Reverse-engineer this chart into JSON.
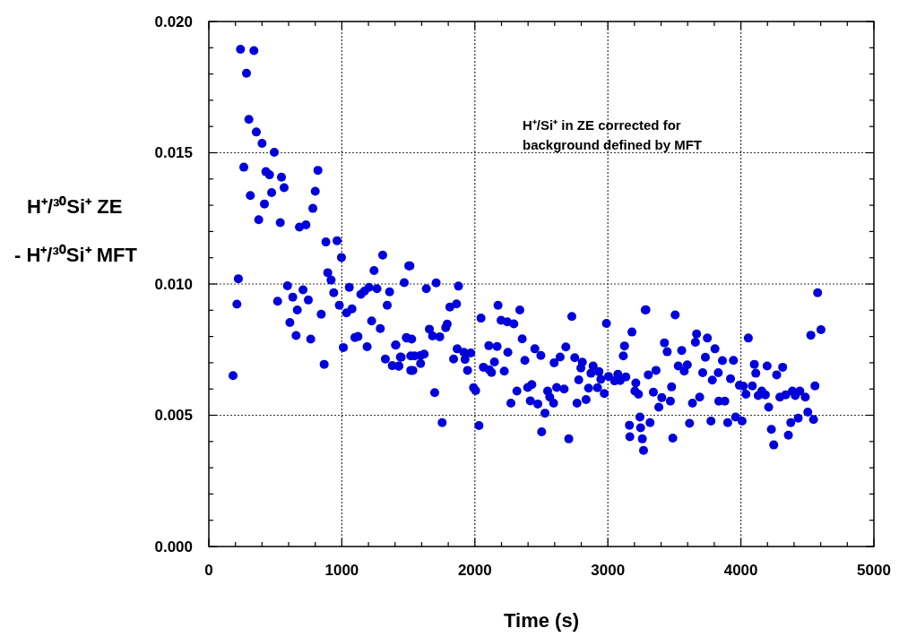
{
  "chart_data": {
    "type": "scatter",
    "xlabel": "Time (s)",
    "ylabel": "H⁺/³⁰Si⁺ ZE - H⁺/³⁰Si⁺ MFT",
    "annotations": [
      "H⁺/Si⁺ in ZE corrected for",
      "background defined by MFT"
    ],
    "xlim": [
      0,
      5000
    ],
    "ylim": [
      0,
      0.02
    ],
    "xticks": [
      0,
      {
        "value": 200,
        "label": null
      },
      {
        "value": 400,
        "label": null
      },
      {
        "value": 600,
        "label": null
      },
      {
        "value": 800,
        "label": null
      },
      1000,
      {
        "value": 1200,
        "label": null
      },
      {
        "value": 1400,
        "label": null
      },
      {
        "value": 1600,
        "label": null
      },
      {
        "value": 1800,
        "label": null
      },
      2000,
      {
        "value": 2200,
        "label": null
      },
      {
        "value": 2400,
        "label": null
      },
      {
        "value": 2600,
        "label": null
      },
      {
        "value": 2800,
        "label": null
      },
      3000,
      {
        "value": 3200,
        "label": null
      },
      {
        "value": 3400,
        "label": null
      },
      {
        "value": 3600,
        "label": null
      },
      {
        "value": 3800,
        "label": null
      },
      4000,
      {
        "value": 4200,
        "label": null
      },
      {
        "value": 4400,
        "label": null
      },
      {
        "value": 4600,
        "label": null
      },
      {
        "value": 4800,
        "label": null
      },
      5000
    ],
    "yticks": [
      {
        "value": 0,
        "label": "0.000"
      },
      {
        "value": 0.001,
        "label": null
      },
      {
        "value": 0.002,
        "label": null
      },
      {
        "value": 0.003,
        "label": null
      },
      {
        "value": 0.004,
        "label": null
      },
      {
        "value": 0.005,
        "label": "0.005"
      },
      {
        "value": 0.006,
        "label": null
      },
      {
        "value": 0.007,
        "label": null
      },
      {
        "value": 0.008,
        "label": null
      },
      {
        "value": 0.009,
        "label": null
      },
      {
        "value": 0.01,
        "label": "0.010"
      },
      {
        "value": 0.011,
        "label": null
      },
      {
        "value": 0.012,
        "label": null
      },
      {
        "value": 0.013,
        "label": null
      },
      {
        "value": 0.014,
        "label": null
      },
      {
        "value": 0.015,
        "label": "0.015"
      },
      {
        "value": 0.016,
        "label": null
      },
      {
        "value": 0.017,
        "label": null
      },
      {
        "value": 0.018,
        "label": null
      },
      {
        "value": 0.019,
        "label": null
      },
      {
        "value": 0.02,
        "label": "0.020"
      }
    ],
    "grid": true,
    "marker": "circle",
    "series": [
      {
        "color": "#0000dd",
        "x": [
          182,
          211,
          222,
          238,
          283,
          301,
          339,
          357,
          400,
          492,
          263,
          429,
          456,
          546,
          566,
          312,
          472,
          418,
          820,
          800,
          782,
          375,
          537,
          681,
          730,
          880,
          964,
          997,
          1307,
          894,
          919,
          939,
          591,
          708,
          631,
          748,
          517,
          665,
          845,
          981,
          1056,
          1035,
          1076,
          1143,
          1170,
          1204,
          1264,
          1242,
          1341,
          1359,
          1469,
          1503,
          609,
          656,
          766,
          1224,
          1289,
          1098,
          1121,
          1011,
          1190,
          867,
          1404,
          1327,
          1379,
          1428,
          1446,
          1487,
          1518,
          1518,
          1512,
          1635,
          1709,
          1877,
          1812,
          1862,
          2046,
          2174,
          2338,
          2197,
          2244,
          2293,
          2729,
          2989,
          3281,
          3181,
          3125,
          3116,
          1781,
          1792,
          1658,
          1682,
          1736,
          1485,
          1525,
          1406,
          1440,
          1428,
          1547,
          1592,
          1619,
          1592,
          1534,
          1840,
          1867,
          1917,
          1969,
          1926,
          1945,
          1698,
          1754,
          1990,
          2006,
          2031,
          2105,
          2167,
          2248,
          2064,
          2109,
          2125,
          2147,
          2221,
          2356,
          2376,
          2451,
          2496,
          2684,
          2751,
          2596,
          2641,
          2808,
          2797,
          2889,
          2933,
          2873,
          2781,
          3075,
          2316,
          2397,
          2428,
          2547,
          2615,
          2671,
          2271,
          2417,
          2473,
          2563,
          2592,
          2527,
          2502,
          2706,
          2768,
          2836,
          2855,
          2922,
          2973,
          2947,
          3005,
          3050,
          3092,
          3135,
          3210,
          3162,
          3241,
          3259,
          3286,
          3506,
          3425,
          3446,
          3555,
          3667,
          3658,
          3748,
          3805,
          3733,
          3861,
          3944,
          4056,
          3529,
          3574,
          3597,
          3713,
          3830,
          3785,
          3922,
          3304,
          3362,
          3203,
          3230,
          3342,
          3479,
          3405,
          3470,
          3383,
          3636,
          3690,
          3834,
          3879,
          3989,
          4018,
          4038,
          4086,
          4101,
          4112,
          4197,
          4269,
          4314,
          4130,
          4157,
          4184,
          4209,
          4293,
          4337,
          4387,
          4409,
          4443,
          4484,
          4557,
          4526,
          4602,
          4577,
          4503,
          4546,
          4431,
          4375,
          4357,
          4247,
          4229,
          3960,
          4009,
          3901,
          3775,
          3614,
          3488,
          3317,
          3246,
          3165,
          3268
        ],
        "values": [
          0.00651,
          0.00923,
          0.0102,
          0.01894,
          0.01803,
          0.01627,
          0.01889,
          0.01579,
          0.01536,
          0.01502,
          0.01445,
          0.01428,
          0.01416,
          0.01407,
          0.01367,
          0.01337,
          0.01348,
          0.01305,
          0.01433,
          0.01353,
          0.01288,
          0.01245,
          0.01234,
          0.01217,
          0.01225,
          0.0116,
          0.01165,
          0.01101,
          0.0111,
          0.01043,
          0.01015,
          0.00967,
          0.00993,
          0.00978,
          0.0095,
          0.00939,
          0.00934,
          0.00901,
          0.00885,
          0.00919,
          0.00987,
          0.0089,
          0.00905,
          0.00961,
          0.00973,
          0.00987,
          0.00982,
          0.01051,
          0.00919,
          0.0097,
          0.01005,
          0.01069,
          0.00853,
          0.00804,
          0.0079,
          0.00859,
          0.0083,
          0.00796,
          0.008,
          0.00758,
          0.00761,
          0.00694,
          0.00767,
          0.00714,
          0.00689,
          0.00687,
          0.00721,
          0.00794,
          0.00671,
          0.00726,
          0.01069,
          0.00982,
          0.01004,
          0.00992,
          0.00912,
          0.00924,
          0.0087,
          0.00919,
          0.00901,
          0.00862,
          0.00856,
          0.00848,
          0.00876,
          0.0085,
          0.00901,
          0.00817,
          0.00764,
          0.00726,
          0.00834,
          0.00847,
          0.00828,
          0.00802,
          0.00799,
          0.00796,
          0.0079,
          0.00768,
          0.00722,
          0.00688,
          0.00726,
          0.00728,
          0.00733,
          0.00697,
          0.00671,
          0.00714,
          0.00753,
          0.0074,
          0.00737,
          0.00713,
          0.00671,
          0.00586,
          0.00472,
          0.00605,
          0.00594,
          0.00461,
          0.00765,
          0.00762,
          0.0074,
          0.00683,
          0.00673,
          0.00663,
          0.00703,
          0.00668,
          0.00791,
          0.00709,
          0.00753,
          0.00728,
          0.0076,
          0.00719,
          0.007,
          0.00722,
          0.00702,
          0.0068,
          0.00688,
          0.00666,
          0.0066,
          0.00635,
          0.00656,
          0.00592,
          0.00606,
          0.00617,
          0.00592,
          0.00606,
          0.006,
          0.00546,
          0.00555,
          0.00543,
          0.00569,
          0.00546,
          0.00508,
          0.00437,
          0.0041,
          0.00546,
          0.0056,
          0.00603,
          0.00605,
          0.00583,
          0.00637,
          0.00648,
          0.00631,
          0.00632,
          0.00646,
          0.00623,
          0.00462,
          0.00493,
          0.0041,
          0.00902,
          0.00882,
          0.00776,
          0.00742,
          0.00747,
          0.0081,
          0.00778,
          0.00794,
          0.00753,
          0.00721,
          0.00708,
          0.00709,
          0.00794,
          0.00688,
          0.00668,
          0.00692,
          0.00662,
          0.00662,
          0.00634,
          0.00639,
          0.00654,
          0.00671,
          0.00592,
          0.0058,
          0.00588,
          0.00608,
          0.00567,
          0.00554,
          0.00531,
          0.00546,
          0.00569,
          0.00554,
          0.00554,
          0.00614,
          0.00611,
          0.0058,
          0.00612,
          0.00694,
          0.0066,
          0.00688,
          0.00654,
          0.00683,
          0.00575,
          0.00592,
          0.00578,
          0.00531,
          0.00569,
          0.00578,
          0.00592,
          0.00575,
          0.00592,
          0.00569,
          0.00612,
          0.00805,
          0.00826,
          0.00967,
          0.00512,
          0.00484,
          0.00489,
          0.00472,
          0.00424,
          0.00387,
          0.00446,
          0.00493,
          0.00478,
          0.00472,
          0.00478,
          0.00469,
          0.00413,
          0.00472,
          0.00452,
          0.00418,
          0.00366
        ]
      }
    ]
  }
}
